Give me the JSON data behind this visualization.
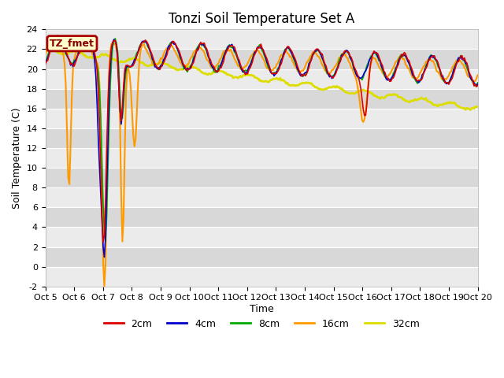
{
  "title": "Tonzi Soil Temperature Set A",
  "ylabel": "Soil Temperature (C)",
  "xlabel": "Time",
  "annotation": "TZ_fmet",
  "ylim": [
    -2,
    24
  ],
  "yticks": [
    -2,
    0,
    2,
    4,
    6,
    8,
    10,
    12,
    14,
    16,
    18,
    20,
    22,
    24
  ],
  "xtick_labels": [
    "Oct 5",
    "Oct 6",
    "Oct 7",
    "Oct 8",
    "Oct 9",
    "Oct 10",
    "Oct 11",
    "Oct 12",
    "Oct 13",
    "Oct 14",
    "Oct 15",
    "Oct 16",
    "Oct 17",
    "Oct 18",
    "Oct 19",
    "Oct 20"
  ],
  "line_colors": [
    "#dd0000",
    "#0000cc",
    "#00aa00",
    "#ff9900",
    "#dddd00"
  ],
  "line_labels": [
    "2cm",
    "4cm",
    "8cm",
    "16cm",
    "32cm"
  ],
  "line_widths": [
    1.2,
    1.2,
    1.2,
    1.5,
    2.0
  ],
  "fig_bg": "#ffffff",
  "plot_bg_light": "#ebebeb",
  "plot_bg_dark": "#d8d8d8",
  "grid_color": "#ffffff",
  "annotation_bg": "#ffffcc",
  "annotation_border": "#aa0000",
  "title_fontsize": 12,
  "label_fontsize": 9,
  "tick_fontsize": 8,
  "n_points": 360
}
